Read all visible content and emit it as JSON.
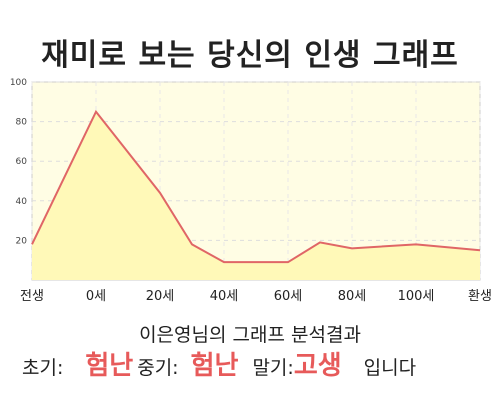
{
  "chart_data": {
    "type": "area",
    "title": "재미로 보는 당신의 인생 그래프",
    "x": [
      "전생",
      "0세",
      "20세",
      "40세",
      "60세",
      "80세",
      "100세",
      "환생"
    ],
    "series": [
      {
        "values": [
          {
            "x": "전생",
            "y": 18
          },
          {
            "x": "0세",
            "y": 85
          },
          {
            "x": "20세",
            "y": 44
          },
          {
            "x": "30세",
            "y": 18
          },
          {
            "x": "40세",
            "y": 9
          },
          {
            "x": "60세",
            "y": 9
          },
          {
            "x": "70세",
            "y": 19
          },
          {
            "x": "80세",
            "y": 16
          },
          {
            "x": "100세",
            "y": 18
          },
          {
            "x": "환생",
            "y": 15
          }
        ]
      }
    ],
    "ylim": [
      0,
      100
    ],
    "yticks": [
      20,
      40,
      60,
      80,
      100
    ],
    "grid": true,
    "colors": {
      "line": "#e06666",
      "fill": "#fff9b8",
      "plot_bg": "#fffde4"
    }
  },
  "subtitle": "이은영님의 그래프 분석결과",
  "summary": {
    "early_label": "초기:",
    "early_value": "험난",
    "mid_label": "중기:",
    "mid_value": "험난",
    "late_label": "말기:",
    "late_value": "고생",
    "ending": "입니다"
  }
}
